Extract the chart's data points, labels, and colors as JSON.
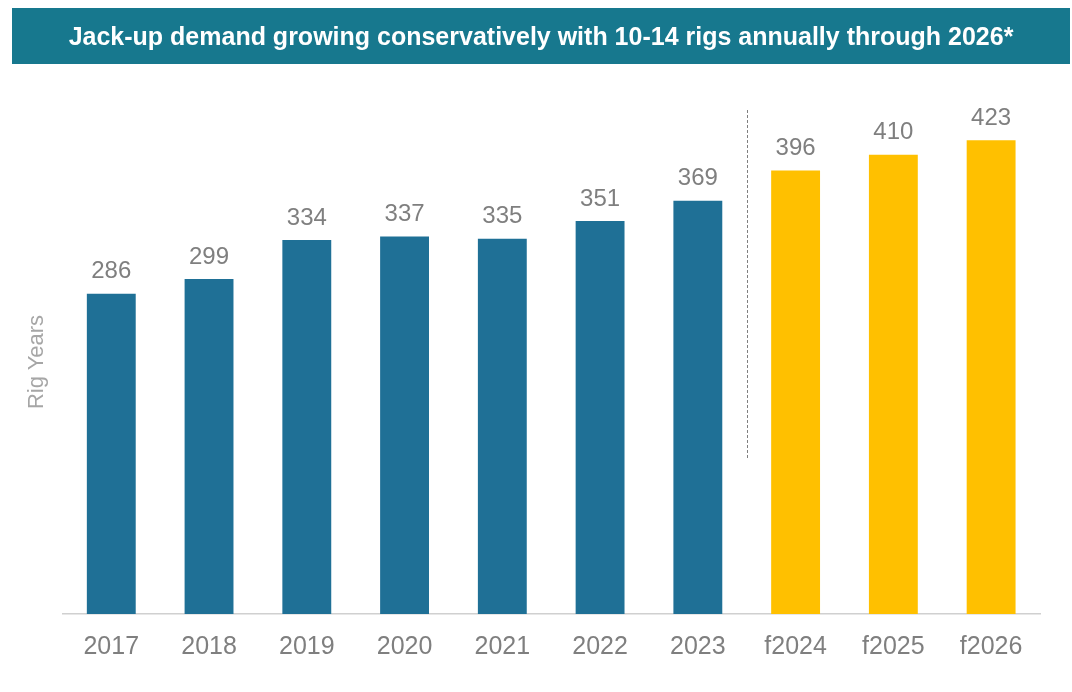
{
  "chart_data": {
    "type": "bar",
    "title": "Jack-up demand growing conservatively with 10-14 rigs annually through 2026*",
    "ylabel": "Rig Years",
    "categories": [
      "2017",
      "2018",
      "2019",
      "2020",
      "2021",
      "2022",
      "2023",
      "f2024",
      "f2025",
      "f2026"
    ],
    "values": [
      286,
      299,
      334,
      337,
      335,
      351,
      369,
      396,
      410,
      423
    ],
    "colors": [
      "#1f7096",
      "#1f7096",
      "#1f7096",
      "#1f7096",
      "#1f7096",
      "#1f7096",
      "#1f7096",
      "#ffc000",
      "#ffc000",
      "#ffc000"
    ],
    "data_labels": true,
    "grid": false,
    "legend": false,
    "tick_labels": "x"
  }
}
